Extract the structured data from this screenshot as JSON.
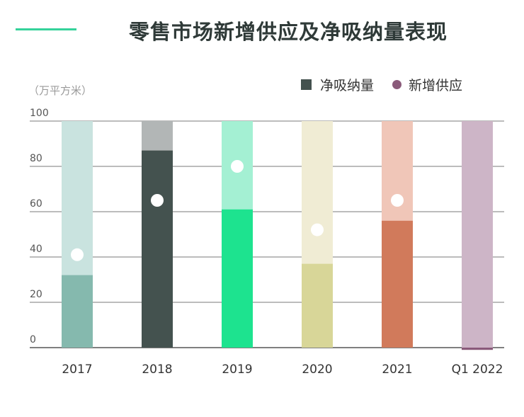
{
  "title": "零售市场新增供应及净吸纳量表现",
  "unit_label": "（万平方米）",
  "legend": [
    {
      "label": "净吸纳量",
      "color": "#44524f",
      "kind": "bar"
    },
    {
      "label": "新增供应",
      "color": "#8a5a7a",
      "kind": "dot"
    }
  ],
  "chart_data": {
    "type": "bar",
    "categories": [
      "2017",
      "2018",
      "2019",
      "2020",
      "2021",
      "Q1 2022"
    ],
    "ylim": [
      0,
      100
    ],
    "yticks": [
      "0",
      "20",
      "40",
      "60",
      "80",
      "100"
    ],
    "ylabel": "（万平方米）",
    "series": [
      {
        "name": "净吸纳量",
        "values": [
          32,
          87,
          61,
          37,
          56,
          -1
        ]
      },
      {
        "name": "新增供应",
        "values": [
          41,
          65,
          80,
          52,
          65,
          null
        ]
      }
    ],
    "colors": {
      "dark": [
        "#85b9ae",
        "#44524f",
        "#1de38f",
        "#d8d698",
        "#d17a5b",
        "#8a5a7a"
      ],
      "light": [
        "#c9e3df",
        "#b2b6b6",
        "#a4f0d3",
        "#f0ecd4",
        "#f0c6b8",
        "#cdb5c7"
      ]
    },
    "grid": true,
    "legend_position": "top-right"
  }
}
